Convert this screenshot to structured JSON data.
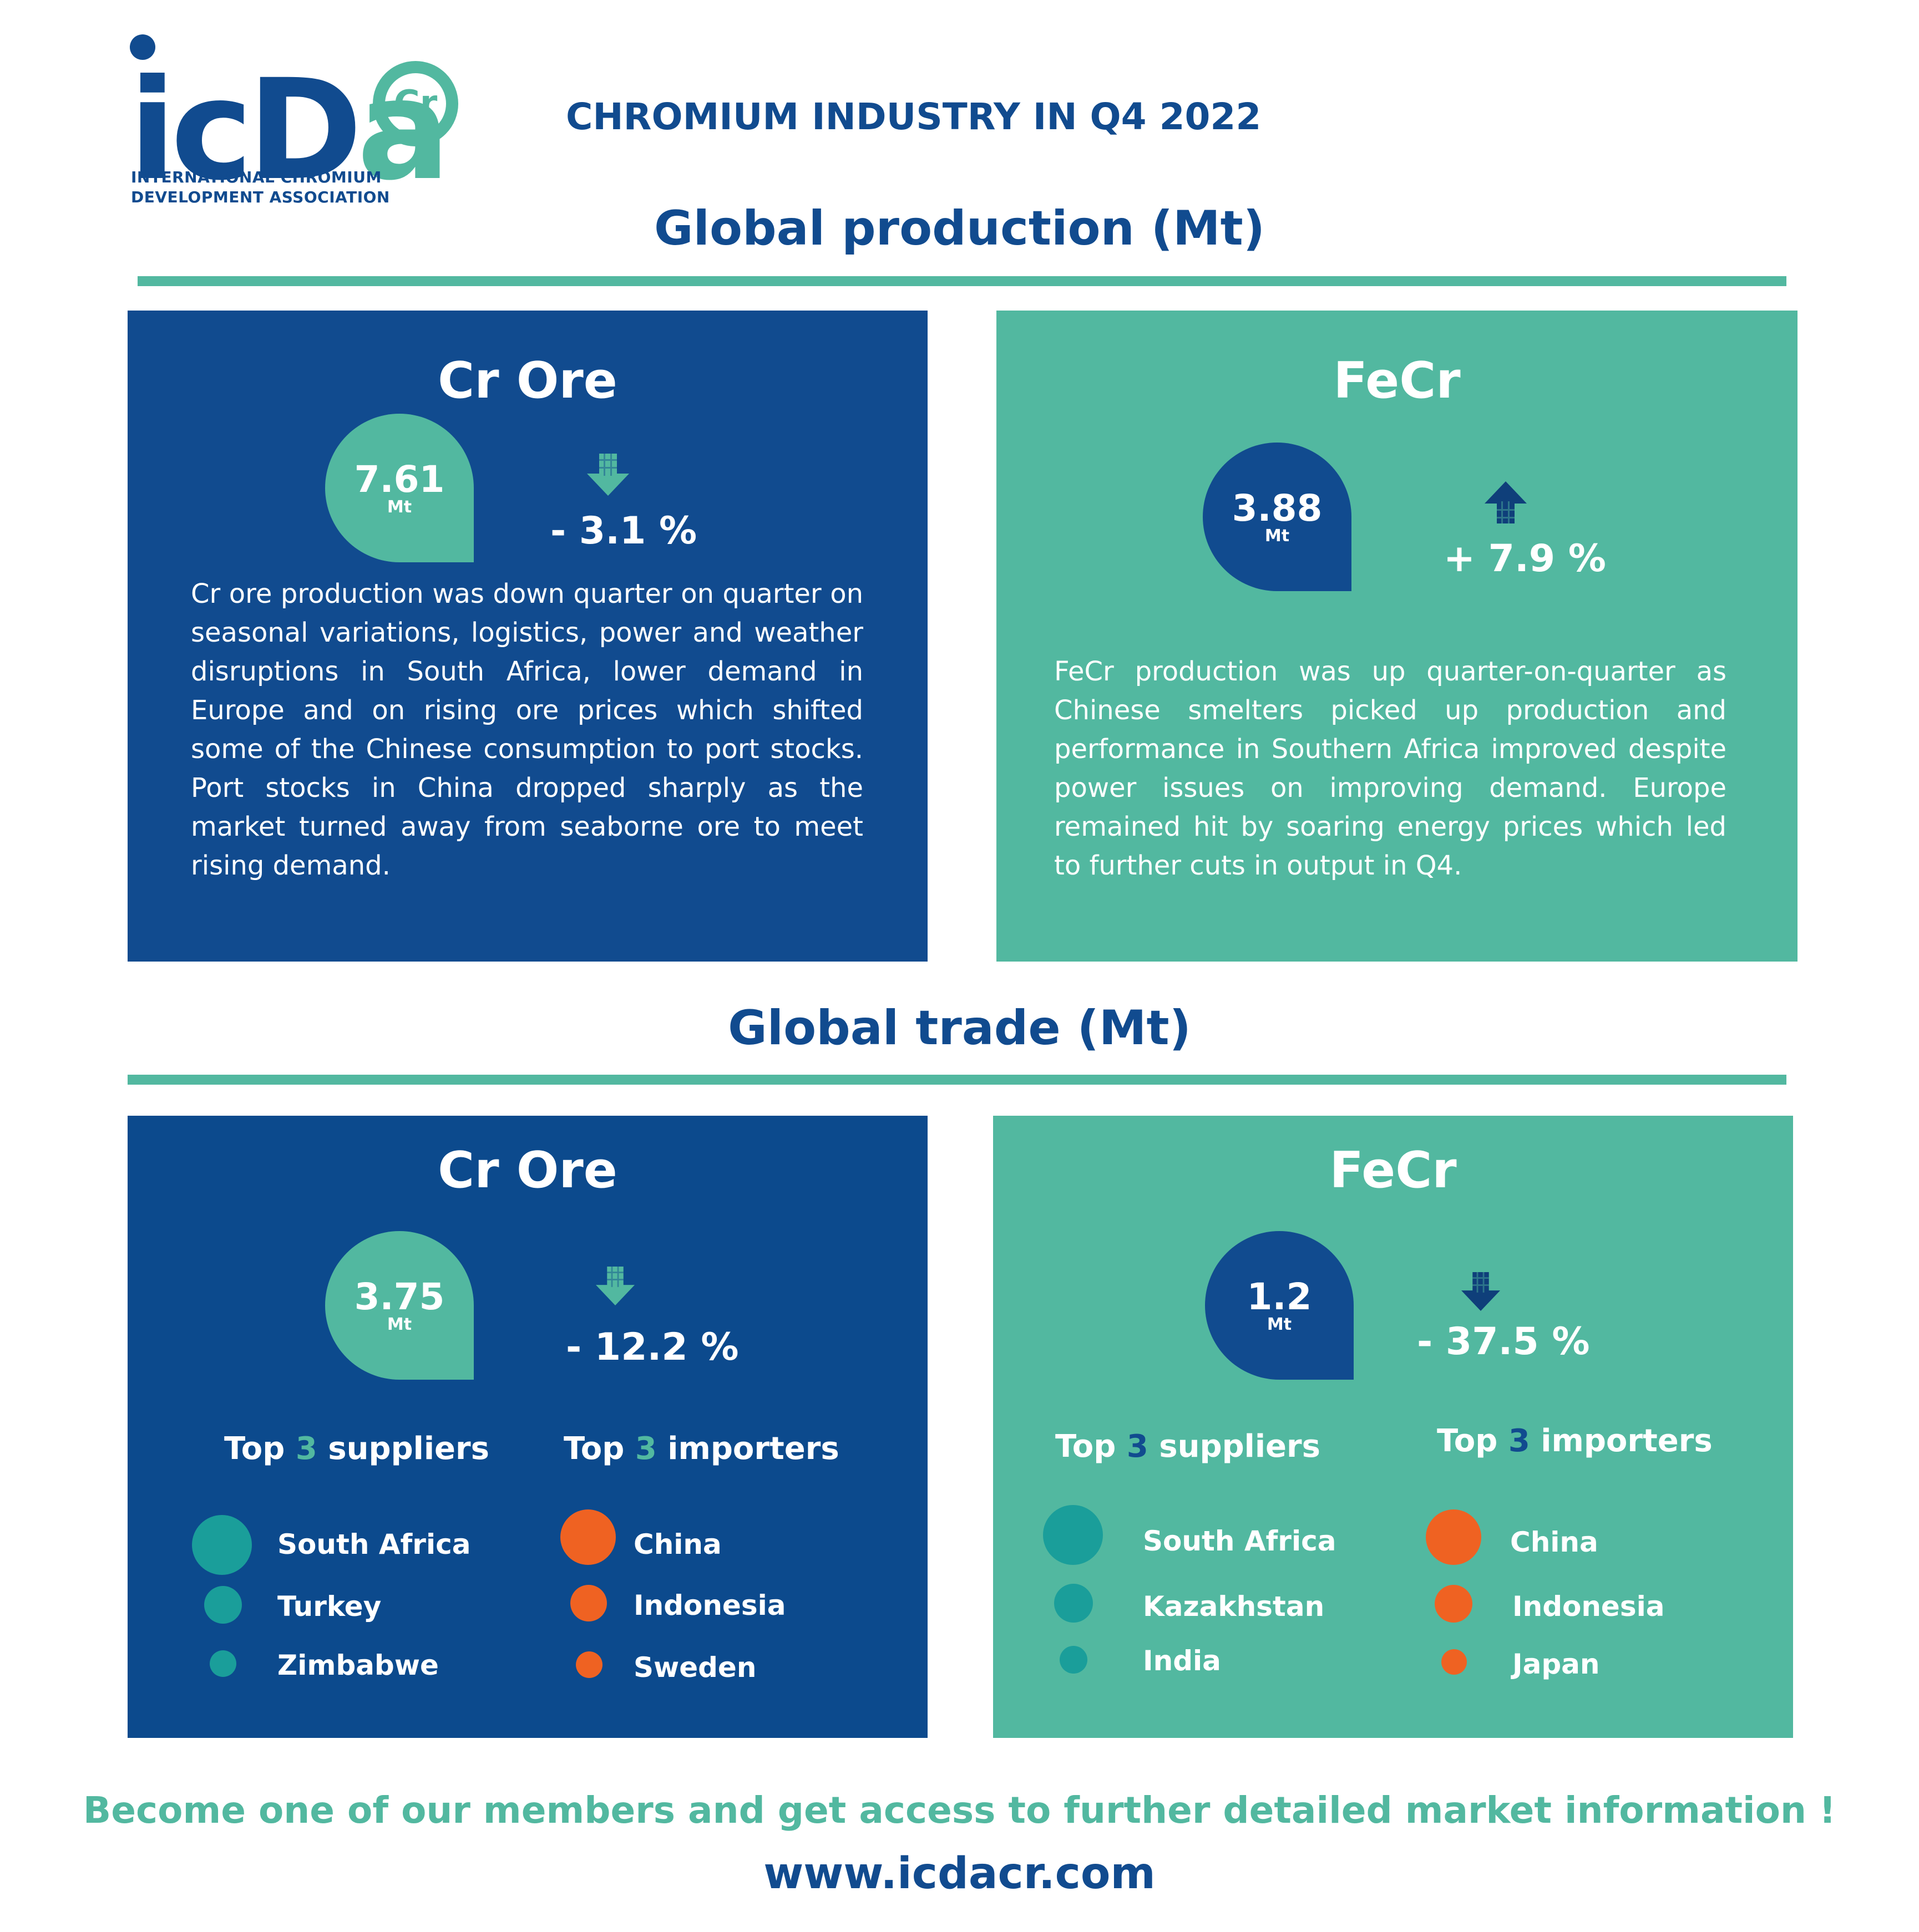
{
  "logo": {
    "wordmark_main": "icD",
    "wordmark_accent": "a",
    "badge": "Cr",
    "subtitle_line1": "INTERNATIONAL CHROMIUM",
    "subtitle_line2": "DEVELOPMENT ASSOCIATION"
  },
  "header": {
    "title": "CHROMIUM INDUSTRY IN Q4 2022"
  },
  "colors": {
    "navy": "#114b8f",
    "teal": "#52b8a0",
    "supplier_dot": "#1a9e9a",
    "importer_dot": "#ef6222",
    "arrow_dark": "#0f3f7a"
  },
  "production": {
    "title": "Global production (Mt)",
    "cr_ore": {
      "title": "Cr Ore",
      "value": "7.61",
      "unit": "Mt",
      "change": "- 3.1 %",
      "direction": "down",
      "text": "Cr ore production was down quarter on quarter on seasonal variations, logistics, power and weather disruptions in South Africa, lower demand in Europe and on rising ore prices which shifted some of the Chinese consumption to port stocks. Port stocks in China dropped sharply as the market turned away from seaborne ore to meet rising demand."
    },
    "fecr": {
      "title": "FeCr",
      "value": "3.88",
      "unit": "Mt",
      "change": "+ 7.9 %",
      "direction": "up",
      "text": "FeCr production was up quarter-on-quarter as Chinese smelters picked up production and performance in Southern Africa improved despite power issues on improving demand. Europe remained hit by soaring energy prices which led to further cuts in output in Q4."
    }
  },
  "trade": {
    "title": "Global trade (Mt)",
    "cr_ore": {
      "title": "Cr Ore",
      "value": "3.75",
      "unit": "Mt",
      "change": "- 12.2 %",
      "direction": "down",
      "suppliers_pre": "Top ",
      "suppliers_num": "3",
      "suppliers_post": " suppliers",
      "importers_pre": "Top ",
      "importers_num": "3",
      "importers_post": " importers",
      "suppliers": [
        "South Africa",
        "Turkey",
        "Zimbabwe"
      ],
      "importers": [
        "China",
        "Indonesia",
        "Sweden"
      ]
    },
    "fecr": {
      "title": "FeCr",
      "value": "1.2",
      "unit": "Mt",
      "change": "- 37.5 %",
      "direction": "down",
      "suppliers_pre": "Top ",
      "suppliers_num": "3",
      "suppliers_post": " suppliers",
      "importers_pre": "Top ",
      "importers_num": "3",
      "importers_post": " importers",
      "suppliers": [
        "South Africa",
        "Kazakhstan",
        "India"
      ],
      "importers": [
        "China",
        "Indonesia",
        "Japan"
      ]
    }
  },
  "footer": {
    "cta": "Become one of our members and get access to further detailed market information !",
    "url": "www.icdacr.com"
  }
}
